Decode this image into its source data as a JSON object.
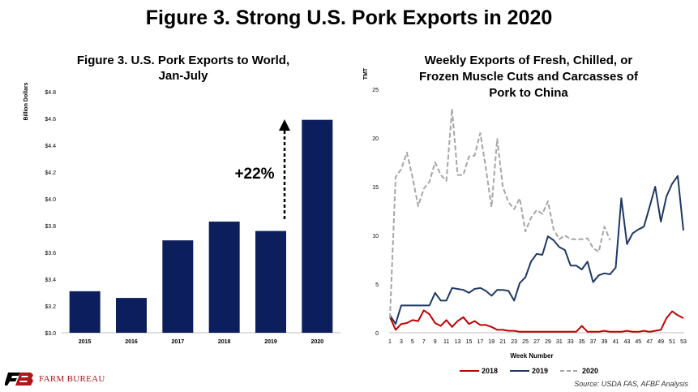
{
  "page": {
    "title": "Figure 3. Strong U.S. Pork Exports in 2020",
    "brand": "FARM BUREAU",
    "brand_mark": "FB",
    "source": "Source:  USDA FAS, AFBF Analysis"
  },
  "chart_data": [
    {
      "type": "bar",
      "title": "Figure 3. U.S. Pork Exports to World, Jan-July",
      "title_lines": [
        "Figure 3. U.S. Pork Exports to World,",
        "Jan-July"
      ],
      "ylabel": "Billion Dollars",
      "xlabel": "",
      "categories": [
        "2015",
        "2016",
        "2017",
        "2018",
        "2019",
        "2020"
      ],
      "values": [
        3.31,
        3.26,
        3.69,
        3.83,
        3.76,
        4.59
      ],
      "ylim": [
        3.0,
        4.8
      ],
      "yticks": [
        "$3.0",
        "$3.2",
        "$3.4",
        "$3.6",
        "$3.8",
        "$4.0",
        "$4.2",
        "$4.4",
        "$4.6",
        "$4.8"
      ],
      "bar_color": "#0c1f5c",
      "annotation": "+22%",
      "grid": false
    },
    {
      "type": "line",
      "title": "Weekly Exports of Fresh, Chilled, or Frozen Muscle Cuts and Carcasses of Pork to China",
      "title_lines": [
        "Weekly Exports of Fresh, Chilled, or",
        "Frozen Muscle Cuts and Carcasses of",
        "Pork to China"
      ],
      "ylabel": "TMT",
      "xlabel": "Week Number",
      "xlim": [
        1,
        53
      ],
      "ylim": [
        0,
        25
      ],
      "yticks": [
        "0",
        "5",
        "10",
        "15",
        "20",
        "25"
      ],
      "xticks": [
        "1",
        "3",
        "5",
        "7",
        "9",
        "11",
        "13",
        "15",
        "17",
        "19",
        "21",
        "23",
        "25",
        "27",
        "29",
        "31",
        "33",
        "35",
        "37",
        "39",
        "41",
        "43",
        "45",
        "47",
        "49",
        "51",
        "53"
      ],
      "legend": "bottom",
      "grid": false,
      "series": [
        {
          "name": "2018",
          "color": "#c00000",
          "dash": "solid",
          "x": [
            1,
            2,
            3,
            4,
            5,
            6,
            7,
            8,
            9,
            10,
            11,
            12,
            13,
            14,
            15,
            16,
            17,
            18,
            19,
            20,
            21,
            22,
            23,
            24,
            25,
            26,
            27,
            28,
            29,
            30,
            31,
            32,
            33,
            34,
            35,
            36,
            37,
            38,
            39,
            40,
            41,
            42,
            43,
            44,
            45,
            46,
            47,
            48,
            49,
            50,
            51,
            52,
            53
          ],
          "values": [
            1.6,
            0.3,
            0.9,
            1.0,
            1.3,
            1.2,
            2.3,
            1.9,
            1.0,
            0.7,
            1.3,
            0.6,
            1.2,
            1.6,
            0.9,
            1.2,
            0.8,
            0.8,
            0.6,
            0.3,
            0.3,
            0.2,
            0.2,
            0.1,
            0.1,
            0.1,
            0.1,
            0.1,
            0.1,
            0.1,
            0.1,
            0.1,
            0.1,
            0.1,
            0.7,
            0.1,
            0.1,
            0.1,
            0.2,
            0.1,
            0.1,
            0.1,
            0.2,
            0.1,
            0.1,
            0.2,
            0.1,
            0.2,
            0.3,
            1.5,
            2.2,
            1.8,
            1.5
          ]
        },
        {
          "name": "2019",
          "color": "#1f3864",
          "dash": "solid",
          "x": [
            1,
            2,
            3,
            4,
            5,
            6,
            7,
            8,
            9,
            10,
            11,
            12,
            13,
            14,
            15,
            16,
            17,
            18,
            19,
            20,
            21,
            22,
            23,
            24,
            25,
            26,
            27,
            28,
            29,
            30,
            31,
            32,
            33,
            34,
            35,
            36,
            37,
            38,
            39,
            40,
            41,
            42,
            43,
            44,
            45,
            46,
            47,
            48,
            49,
            50,
            51,
            52,
            53
          ],
          "values": [
            1.8,
            0.9,
            2.8,
            2.8,
            2.8,
            2.8,
            2.8,
            2.8,
            4.1,
            3.3,
            3.3,
            4.6,
            4.5,
            4.4,
            4.1,
            4.5,
            4.6,
            4.3,
            3.8,
            4.4,
            4.4,
            4.3,
            3.3,
            5.1,
            5.7,
            7.3,
            8.1,
            8.0,
            9.9,
            9.5,
            8.8,
            8.5,
            6.9,
            6.9,
            6.5,
            7.3,
            5.2,
            5.9,
            6.1,
            6.0,
            6.7,
            13.8,
            9.1,
            10.2,
            10.6,
            10.9,
            12.9,
            15.0,
            11.4,
            14.0,
            15.3,
            16.1,
            10.5
          ]
        },
        {
          "name": "2020",
          "color": "#a6a6a6",
          "dash": "dashed",
          "x": [
            1,
            2,
            3,
            4,
            5,
            6,
            7,
            8,
            9,
            10,
            11,
            12,
            13,
            14,
            15,
            16,
            17,
            18,
            19,
            20,
            21,
            22,
            23,
            24,
            25,
            26,
            27,
            28,
            29,
            30,
            31,
            32,
            33,
            34,
            35,
            36,
            37,
            38,
            39,
            40
          ],
          "values": [
            1.5,
            16.0,
            16.8,
            18.5,
            16.0,
            13.0,
            14.8,
            15.5,
            17.5,
            16.2,
            15.6,
            23.0,
            16.2,
            16.2,
            18.1,
            18.2,
            20.5,
            16.9,
            12.9,
            19.9,
            15.0,
            13.4,
            12.7,
            13.8,
            10.4,
            11.8,
            12.6,
            12.2,
            13.5,
            10.6,
            9.6,
            10.0,
            9.6,
            9.6,
            9.6,
            9.7,
            8.7,
            8.3,
            10.9,
            9.5
          ]
        }
      ]
    }
  ]
}
